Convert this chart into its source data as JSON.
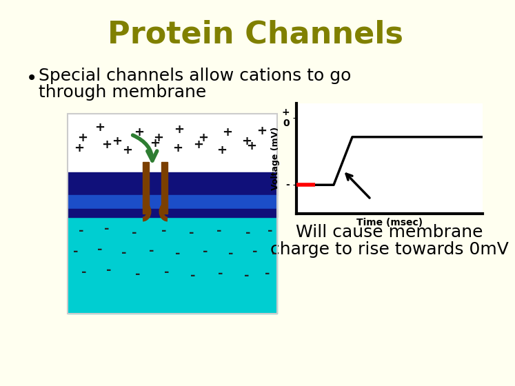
{
  "background_color": "#FFFFF0",
  "title": "Protein Channels",
  "title_color": "#808000",
  "title_fontsize": 32,
  "title_fontweight": "bold",
  "bullet_text_line1": "Special channels allow cations to go",
  "bullet_text_line2": "through membrane",
  "bullet_fontsize": 18,
  "bullet_color": "#000000",
  "caption_text_line1": "Will cause membrane",
  "caption_text_line2": "charge to rise towards 0mV",
  "caption_fontsize": 18,
  "caption_color": "#000000",
  "membrane_dark": "#00008B",
  "membrane_bright": "#1E3A8A",
  "membrane_mid_blue": "#3060C0",
  "cytoplasm_color": "#00CED1",
  "graph_bg": "#FFFFFF",
  "protein_brown": "#7B3F00",
  "arrow_green": "#2E7D32",
  "graph_border": "#000000",
  "red_color": "#FF0000"
}
